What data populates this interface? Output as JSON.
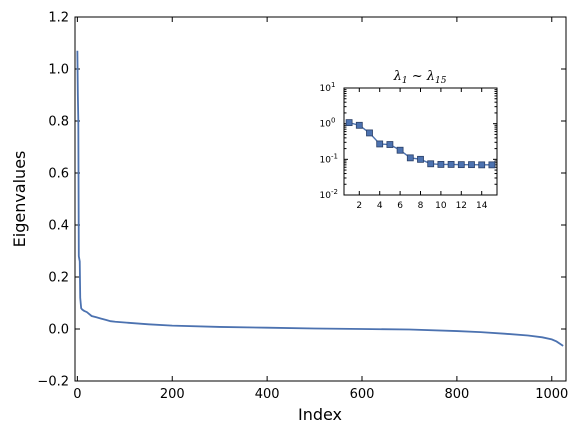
{
  "colors": {
    "series": "#4c72b0",
    "axis": "#000000",
    "background": "#ffffff"
  },
  "chart_data": [
    {
      "type": "line",
      "title": "",
      "xlabel": "Index",
      "ylabel": "Eigenvalues",
      "xlim": [
        -5,
        1030
      ],
      "ylim": [
        -0.2,
        1.2
      ],
      "x_ticks": [
        0,
        200,
        400,
        600,
        800,
        1000
      ],
      "x_tick_labels": [
        "0",
        "200",
        "400",
        "600",
        "800",
        "1000"
      ],
      "y_ticks": [
        -0.2,
        0.0,
        0.2,
        0.4,
        0.6,
        0.8,
        1.0,
        1.2
      ],
      "y_tick_labels": [
        "−0.2",
        "0.0",
        "0.2",
        "0.4",
        "0.6",
        "0.8",
        "1.0",
        "1.2"
      ],
      "grid": false,
      "series": [
        {
          "x": [
            0,
            1,
            2,
            3,
            4,
            5,
            6,
            8,
            10,
            14,
            20,
            30,
            40,
            50,
            60,
            70,
            80,
            100,
            150,
            200,
            300,
            400,
            500,
            600,
            700,
            800,
            850,
            900,
            950,
            980,
            1000,
            1010,
            1020,
            1024
          ],
          "y": [
            1.07,
            0.9,
            0.8,
            0.28,
            0.27,
            0.26,
            0.12,
            0.08,
            0.075,
            0.07,
            0.065,
            0.05,
            0.045,
            0.04,
            0.035,
            0.03,
            0.028,
            0.025,
            0.018,
            0.013,
            0.008,
            0.005,
            0.002,
            0.0,
            -0.002,
            -0.008,
            -0.012,
            -0.018,
            -0.025,
            -0.032,
            -0.04,
            -0.048,
            -0.06,
            -0.065
          ]
        }
      ]
    },
    {
      "type": "line",
      "title_main": "λ",
      "title_sub1": "1",
      "title_mid": " ~ λ",
      "title_sub2": "15",
      "xlim": [
        0.5,
        15.5
      ],
      "ylim_log": [
        0.01,
        10
      ],
      "yscale": "log",
      "x_ticks": [
        2,
        4,
        6,
        8,
        10,
        12,
        14
      ],
      "x_tick_labels": [
        "2",
        "4",
        "6",
        "8",
        "10",
        "12",
        "14"
      ],
      "y_tick_base": [
        "10",
        "10",
        "10",
        "10"
      ],
      "y_tick_exp": [
        "-2",
        "-1",
        "0",
        "1"
      ],
      "y_tick_values": [
        0.01,
        0.1,
        1,
        10
      ],
      "series": [
        {
          "x": [
            1,
            2,
            3,
            4,
            5,
            6,
            7,
            8,
            9,
            10,
            11,
            12,
            13,
            14,
            15
          ],
          "y": [
            1.07,
            0.9,
            0.55,
            0.27,
            0.26,
            0.18,
            0.11,
            0.1,
            0.075,
            0.072,
            0.072,
            0.071,
            0.071,
            0.07,
            0.07
          ],
          "marker": "square"
        }
      ]
    }
  ]
}
